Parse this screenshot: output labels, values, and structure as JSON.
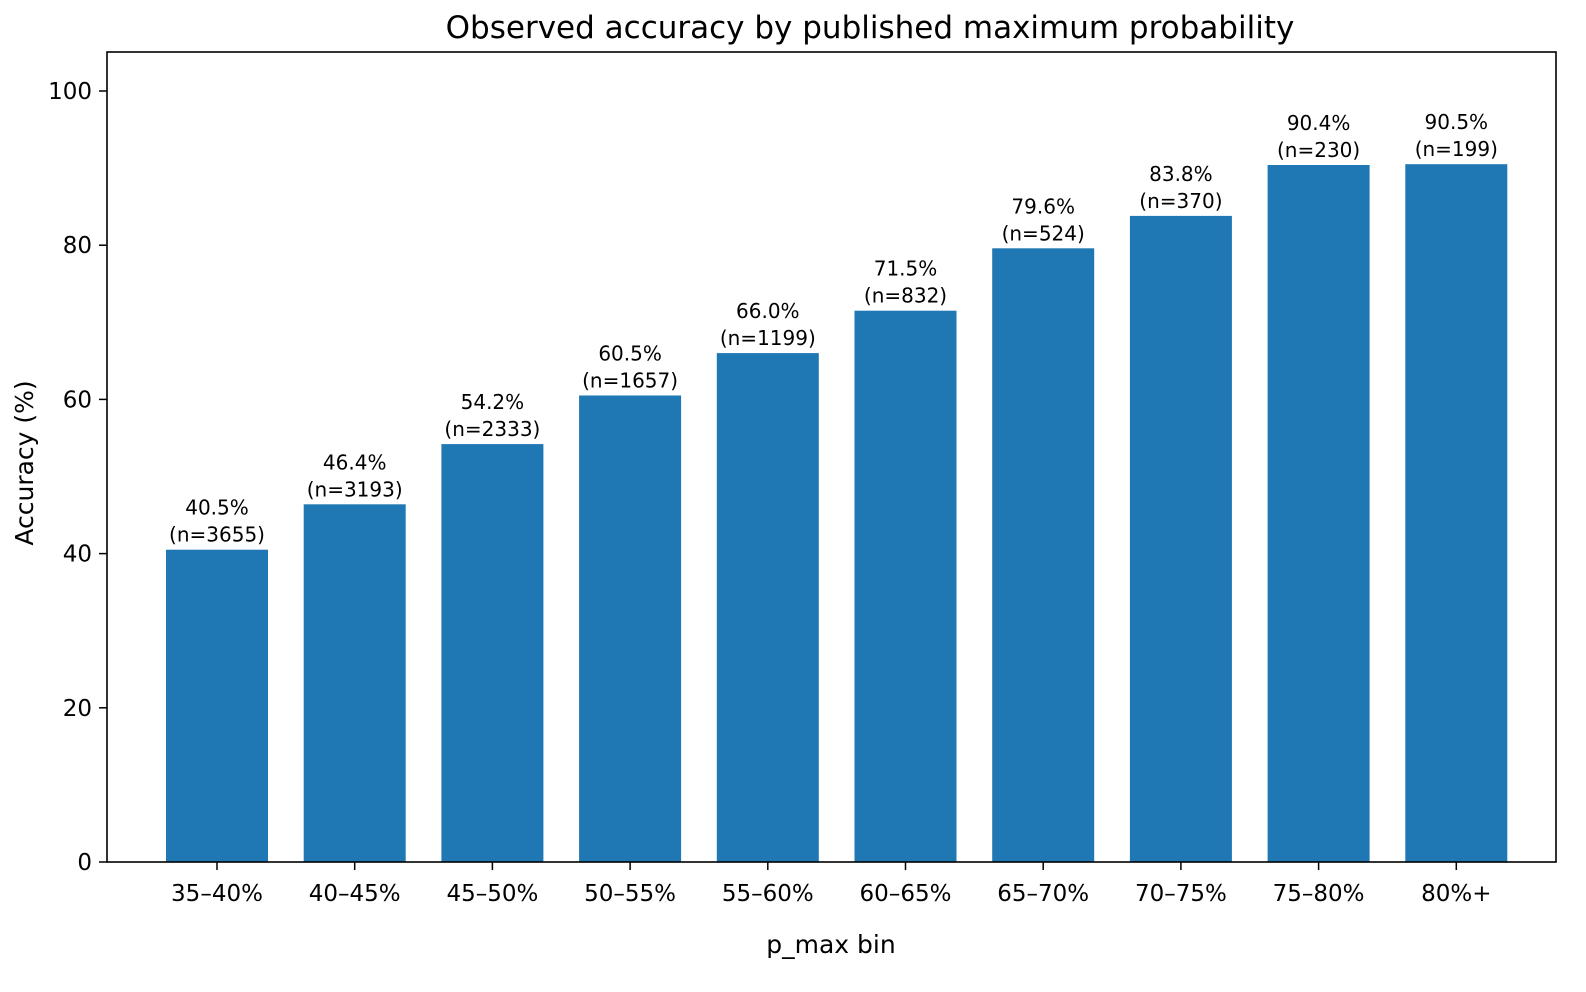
{
  "chart_data": {
    "type": "bar",
    "title": "Observed accuracy by published maximum probability",
    "xlabel": "p_max bin",
    "ylabel": "Accuracy (%)",
    "categories": [
      "35–40%",
      "40–45%",
      "45–50%",
      "50–55%",
      "55–60%",
      "60–65%",
      "65–70%",
      "70–75%",
      "75–80%",
      "80%+"
    ],
    "values": [
      40.5,
      46.4,
      54.2,
      60.5,
      66.0,
      71.5,
      79.6,
      83.8,
      90.4,
      90.5
    ],
    "data_labels": [
      "40.5%",
      "46.4%",
      "54.2%",
      "60.5%",
      "66.0%",
      "71.5%",
      "79.6%",
      "83.8%",
      "90.4%",
      "90.5%"
    ],
    "counts": [
      "(n=3655)",
      "(n=3193)",
      "(n=2333)",
      "(n=1657)",
      "(n=1199)",
      "(n=832)",
      "(n=524)",
      "(n=370)",
      "(n=230)",
      "(n=199)"
    ],
    "ylim": [
      0,
      105
    ],
    "yticks": [
      0,
      20,
      40,
      60,
      80,
      100
    ],
    "grid": false,
    "bar_color": "#1f77b4"
  }
}
